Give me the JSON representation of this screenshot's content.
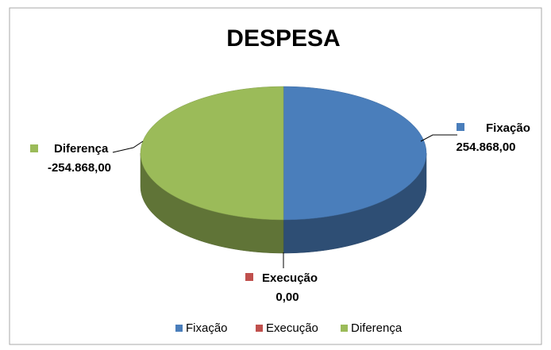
{
  "chart_data": {
    "type": "pie3d",
    "title": "DESPESA",
    "categories": [
      "Fixação",
      "Execução",
      "Diferença"
    ],
    "values": [
      254868,
      0,
      -254868
    ],
    "value_labels": [
      "254.868,00",
      "0,00",
      "-254.868,00"
    ],
    "colors": [
      "#4a7ebb",
      "#c0504d",
      "#9bbb59"
    ],
    "legend": "bottom"
  }
}
